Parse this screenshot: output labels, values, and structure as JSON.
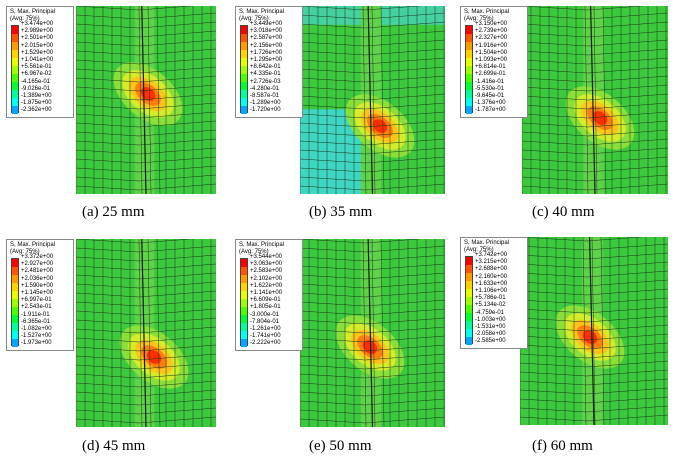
{
  "panels": [
    {
      "caption": "(a) 25 mm",
      "legend_title": "S, Max. Principal\n(Avg: 75%)",
      "legend_values": [
        "+3.474e+00",
        "+2.989e+00",
        "+2.501e+00",
        "+2.015e+00",
        "+1.529e+00",
        "+1.041e+00",
        "+5.561e-01",
        "+6.967e-02",
        "-4.165e-01",
        "-9.026e-01",
        "-1.389e+00",
        "-1.875e+00",
        "-2.362e+00"
      ]
    },
    {
      "caption": "(b) 35 mm",
      "legend_title": "S, Max. Principal\n(Avg: 75%)",
      "legend_values": [
        "+3.449e+00",
        "+3.018e+00",
        "+2.587e+00",
        "+2.156e+00",
        "+1.726e+00",
        "+1.295e+00",
        "+8.642e-01",
        "+4.335e-01",
        "+2.726e-03",
        "-4.280e-01",
        "-8.587e-01",
        "-1.289e+00",
        "-1.720e+00"
      ]
    },
    {
      "caption": "(c) 40 mm",
      "legend_title": "S, Max. Principal\n(Avg: 75%)",
      "legend_values": [
        "+3.150e+00",
        "+2.739e+00",
        "+2.327e+00",
        "+1.916e+00",
        "+1.504e+00",
        "+1.093e+00",
        "+6.814e-01",
        "+2.699e-01",
        "-1.416e-01",
        "-5.530e-01",
        "-9.645e-01",
        "-1.376e+00",
        "-1.787e+00"
      ]
    },
    {
      "caption": "(d) 45 mm",
      "legend_title": "S, Max. Principal\n(Avg: 75%)",
      "legend_values": [
        "+3.372e+00",
        "+2.927e+00",
        "+2.481e+00",
        "+2.036e+00",
        "+1.590e+00",
        "+1.145e+00",
        "+6.997e-01",
        "+2.543e-01",
        "-1.911e-01",
        "-6.365e-01",
        "-1.082e+00",
        "-1.527e+00",
        "-1.973e+00"
      ]
    },
    {
      "caption": "(e) 50 mm",
      "legend_title": "S, Max. Principal\n(Avg: 75%)",
      "legend_values": [
        "+3.544e+00",
        "+3.063e+00",
        "+2.583e+00",
        "+2.102e+00",
        "+1.622e+00",
        "+1.141e+00",
        "+6.609e-01",
        "+1.805e-01",
        "-3.000e-01",
        "-7.804e-01",
        "-1.261e+00",
        "-1.741e+00",
        "-2.222e+00"
      ]
    },
    {
      "caption": "(f) 60 mm",
      "legend_title": "S, Max. Principal\n(Avg: 75%)",
      "legend_values": [
        "+3.742e+00",
        "+3.215e+00",
        "+2.688e+00",
        "+2.160e+00",
        "+1.633e+00",
        "+1.106e+00",
        "+5.786e-01",
        "+5.134e-02",
        "-4.759e-01",
        "-1.003e+00",
        "-1.531e+00",
        "-2.058e+00",
        "-2.585e+00"
      ]
    }
  ],
  "legend_colors": [
    "#ff0000",
    "#ff5500",
    "#ff9b00",
    "#ffd200",
    "#e5ff00",
    "#9fff00",
    "#4cff00",
    "#00ff33",
    "#00ff99",
    "#00ffee",
    "#00a6ff",
    "#0050ff",
    "#0000ff"
  ]
}
